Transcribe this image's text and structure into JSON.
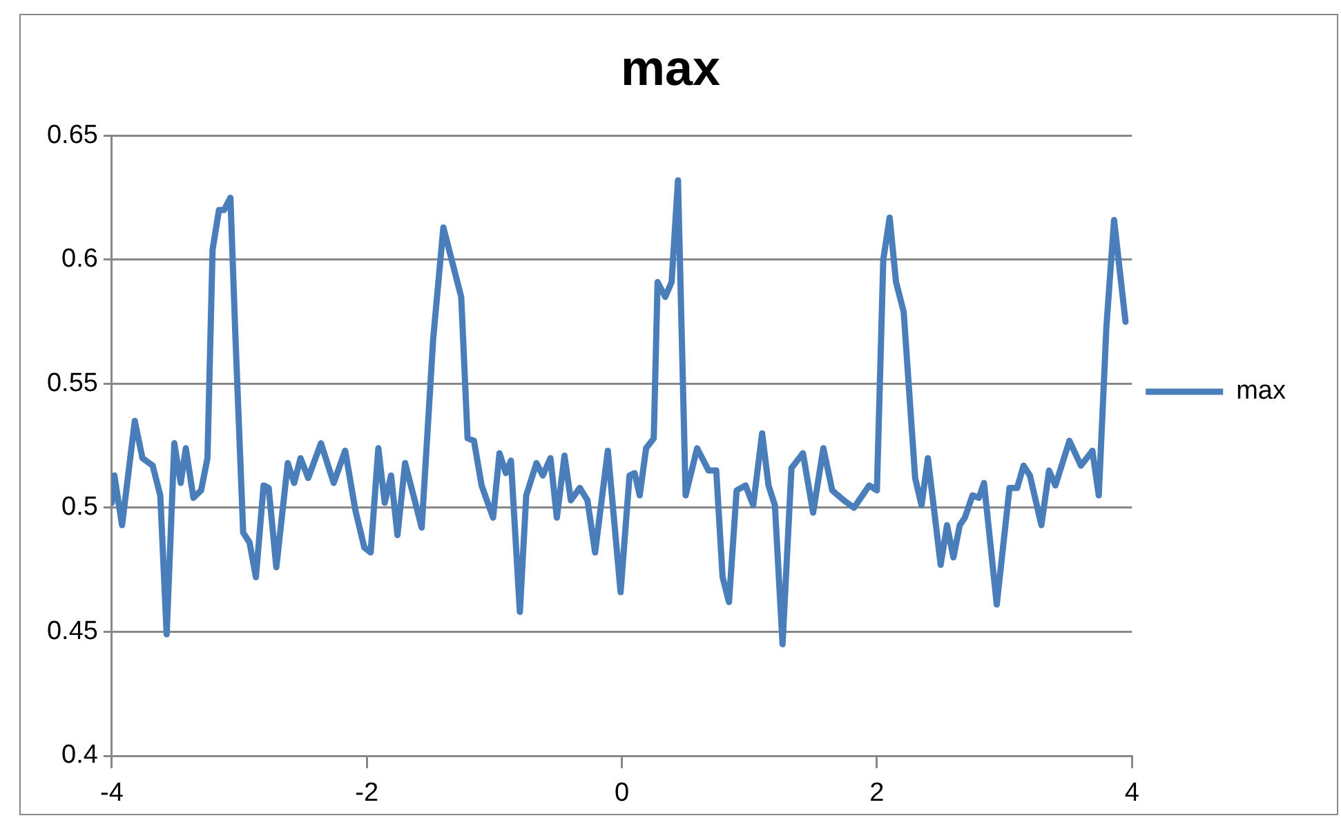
{
  "chart_data": {
    "type": "line",
    "title": "max",
    "legend": "right",
    "grid": "y",
    "marker": "none",
    "line_style": "solid",
    "xlim": [
      -4,
      4
    ],
    "xticks": [
      -4,
      -2,
      0,
      2,
      4
    ],
    "ylim": [
      0.4,
      0.65
    ],
    "yticks": [
      0.4,
      0.45,
      0.5,
      0.55,
      0.6,
      0.65
    ],
    "series": [
      {
        "name": "max",
        "color": "#4a7ebb",
        "x": [
          -4.0,
          -3.98,
          -3.92,
          -3.82,
          -3.76,
          -3.68,
          -3.62,
          -3.57,
          -3.51,
          -3.46,
          -3.42,
          -3.36,
          -3.3,
          -3.25,
          -3.21,
          -3.16,
          -3.12,
          -3.07,
          -3.03,
          -2.97,
          -2.92,
          -2.87,
          -2.81,
          -2.77,
          -2.71,
          -2.62,
          -2.57,
          -2.52,
          -2.46,
          -2.36,
          -2.26,
          -2.17,
          -2.09,
          -2.02,
          -1.97,
          -1.91,
          -1.86,
          -1.81,
          -1.76,
          -1.7,
          -1.64,
          -1.57,
          -1.48,
          -1.4,
          -1.26,
          -1.21,
          -1.16,
          -1.1,
          -1.01,
          -0.96,
          -0.91,
          -0.87,
          -0.8,
          -0.75,
          -0.67,
          -0.62,
          -0.56,
          -0.51,
          -0.45,
          -0.4,
          -0.33,
          -0.27,
          -0.21,
          -0.11,
          -0.01,
          0.06,
          0.1,
          0.14,
          0.19,
          0.25,
          0.28,
          0.34,
          0.39,
          0.44,
          0.5,
          0.59,
          0.68,
          0.74,
          0.79,
          0.84,
          0.9,
          0.97,
          1.03,
          1.1,
          1.15,
          1.2,
          1.26,
          1.33,
          1.42,
          1.5,
          1.58,
          1.65,
          1.74,
          1.82,
          1.94,
          2.0,
          2.05,
          2.1,
          2.15,
          2.21,
          2.3,
          2.35,
          2.4,
          2.5,
          2.55,
          2.6,
          2.65,
          2.69,
          2.75,
          2.8,
          2.84,
          2.94,
          3.04,
          3.1,
          3.15,
          3.2,
          3.29,
          3.35,
          3.4,
          3.51,
          3.6,
          3.69,
          3.74,
          3.8,
          3.86,
          3.95
        ],
        "values": [
          0.502,
          0.513,
          0.493,
          0.535,
          0.52,
          0.517,
          0.505,
          0.449,
          0.526,
          0.51,
          0.524,
          0.504,
          0.507,
          0.52,
          0.604,
          0.62,
          0.62,
          0.625,
          0.568,
          0.49,
          0.486,
          0.472,
          0.509,
          0.508,
          0.476,
          0.518,
          0.51,
          0.52,
          0.512,
          0.526,
          0.51,
          0.523,
          0.499,
          0.484,
          0.482,
          0.524,
          0.502,
          0.513,
          0.489,
          0.518,
          0.506,
          0.492,
          0.568,
          0.613,
          0.585,
          0.528,
          0.527,
          0.509,
          0.496,
          0.522,
          0.514,
          0.519,
          0.458,
          0.505,
          0.518,
          0.513,
          0.52,
          0.496,
          0.521,
          0.503,
          0.508,
          0.503,
          0.482,
          0.523,
          0.466,
          0.513,
          0.514,
          0.505,
          0.524,
          0.528,
          0.591,
          0.585,
          0.591,
          0.632,
          0.505,
          0.524,
          0.515,
          0.515,
          0.472,
          0.462,
          0.507,
          0.509,
          0.501,
          0.53,
          0.509,
          0.501,
          0.445,
          0.516,
          0.522,
          0.498,
          0.524,
          0.507,
          0.503,
          0.5,
          0.509,
          0.507,
          0.6,
          0.617,
          0.591,
          0.579,
          0.512,
          0.501,
          0.52,
          0.477,
          0.493,
          0.48,
          0.493,
          0.496,
          0.505,
          0.504,
          0.51,
          0.461,
          0.508,
          0.508,
          0.517,
          0.513,
          0.493,
          0.515,
          0.509,
          0.527,
          0.517,
          0.523,
          0.505,
          0.573,
          0.616,
          0.575
        ]
      }
    ]
  }
}
